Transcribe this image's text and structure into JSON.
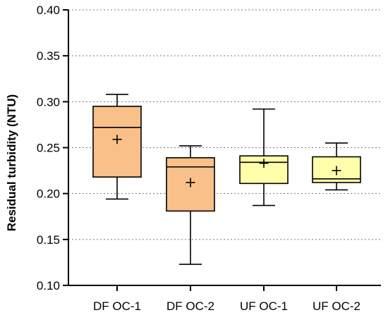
{
  "chart_data": {
    "type": "box",
    "title": "",
    "xlabel": "",
    "ylabel": "Residual turbidity (NTU)",
    "ylim": [
      0.1,
      0.4
    ],
    "yticks": [
      "0.10",
      "0.15",
      "0.20",
      "0.25",
      "0.30",
      "0.35",
      "0.40"
    ],
    "grid": "horizontal-dotted",
    "categories": [
      "DF OC-1",
      "DF OC-2",
      "UF OC-1",
      "UF OC-2"
    ],
    "boxes": [
      {
        "name": "DF OC-1",
        "min": 0.194,
        "q1": 0.218,
        "median": 0.272,
        "q3": 0.295,
        "max": 0.308,
        "mean": 0.259,
        "color": "#F9C08A"
      },
      {
        "name": "DF OC-2",
        "min": 0.123,
        "q1": 0.181,
        "median": 0.229,
        "q3": 0.239,
        "max": 0.252,
        "mean": 0.212,
        "color": "#F9C08A"
      },
      {
        "name": "UF OC-1",
        "min": 0.187,
        "q1": 0.211,
        "median": 0.234,
        "q3": 0.241,
        "max": 0.292,
        "mean": 0.233,
        "color": "#FFFFAA"
      },
      {
        "name": "UF OC-2",
        "min": 0.204,
        "q1": 0.212,
        "median": 0.216,
        "q3": 0.24,
        "max": 0.255,
        "mean": 0.225,
        "color": "#FFFFAA"
      }
    ]
  }
}
